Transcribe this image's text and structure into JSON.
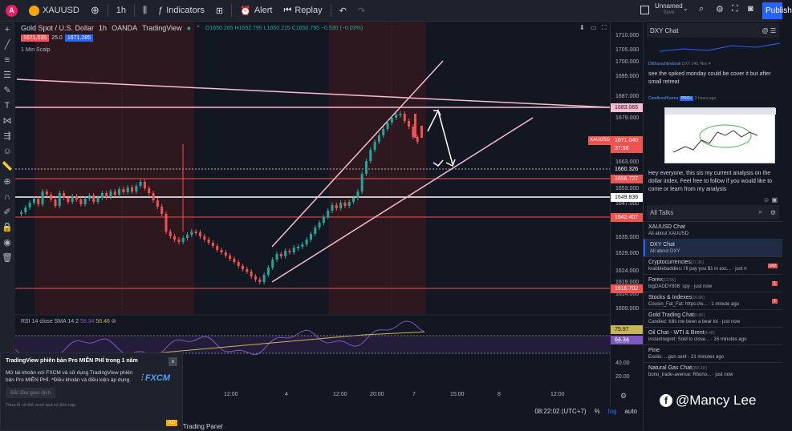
{
  "topbar": {
    "logo_badge": "A",
    "symbol": "XAUUSD",
    "interval": "1h",
    "indicators_label": "Indicators",
    "alert_label": "Alert",
    "replay_label": "Replay",
    "layout_name": "Unnamed",
    "layout_sub": "Save",
    "publish_label": "Publish"
  },
  "chart": {
    "title": "Gold Spot / U.S. Dollar",
    "interval": "1h",
    "exchange": "OANDA",
    "source": "TradingView",
    "ohlc": "O1650.265 H1652.795 L1650.215 C1650.795 −0.530 (−0.03%)",
    "sell_price": "1671.035",
    "spread": "25.0",
    "buy_price": "1671.285",
    "indicator_name": "1 Min Scalp",
    "rsi_header": "RSI 14 close SMA 14 2",
    "rsi_val1": "58.34",
    "rsi_val2": "56.46",
    "time_labels": [
      "12:00",
      "4",
      "12:00",
      "20:00",
      "7",
      "15:00",
      "8",
      "12:00"
    ]
  },
  "price_axis": {
    "labels": [
      "1710.000",
      "1705.000",
      "1700.000",
      "1695.000",
      "1687.000",
      "1679.000",
      "1663.000",
      "1653.000",
      "1647.000",
      "1641.000",
      "1635.000",
      "1629.000",
      "1624.000",
      "1619.000",
      "1614.000",
      "1609.000"
    ],
    "tags": [
      {
        "text": "1683.065",
        "color": "#f8bbd0",
        "textcolor": "#131722"
      },
      {
        "text": "1671.040",
        "color": "#ef5350",
        "textcolor": "#ffffff"
      },
      {
        "text": "37:58",
        "color": "#ef5350",
        "textcolor": "#ffffff"
      },
      {
        "text": "1660.326",
        "color": "#131722",
        "textcolor": "#ffffff"
      },
      {
        "text": "1656.727",
        "color": "#ef5350",
        "textcolor": "#ffffff"
      },
      {
        "text": "1649.836",
        "color": "#ffffff",
        "textcolor": "#131722"
      },
      {
        "text": "1642.407",
        "color": "#ef5350",
        "textcolor": "#ffffff"
      },
      {
        "text": "1616.702",
        "color": "#ef5350",
        "textcolor": "#ffffff"
      }
    ],
    "symbol_tag": "XAUUSD",
    "rsi_tags": [
      "75.97",
      "64.34"
    ],
    "rsi_labels": [
      "60.00",
      "40.00",
      "20.00"
    ]
  },
  "bottombar": {
    "time": "08:22:02 (UTC+7)",
    "percent": "%",
    "log": "log",
    "auto": "auto"
  },
  "chat": {
    "title": "DXY Chat",
    "messages": [
      {
        "user": "Dittharachtindarak",
        "meta": "DXY 240, Nov 4",
        "text": "see the spiked monday could be cover it but after small retreat"
      },
      {
        "user": "CandlesofKarma",
        "badge": "PRO+",
        "meta": "2 hours ago",
        "text": "Hey everyone, this sis my current analysis on the dollar index. Feel free to follow if you would like to come or learn from my analysis"
      }
    ]
  },
  "talks": {
    "title": "All Talks",
    "rooms": [
      {
        "title": "XAUUSD Chat",
        "sub": "All about XAUUSD",
        "selected": false
      },
      {
        "title": "DXY Chat",
        "sub": "All about DXY",
        "selected": true
      },
      {
        "title": "Cryptocurrencies",
        "count": "[37.3K]",
        "sub": "krabblebaddies: I'll pay you $1 in exc... · just n",
        "badge": "142"
      },
      {
        "title": "Forex",
        "count": "[12.5K]",
        "sub": "bigDADDY808: spy · just now",
        "badge": "1"
      },
      {
        "title": "Stocks & Indexes",
        "count": "[10.6K]",
        "sub": "Cousin_Fat_Fat: https://w... · 1 minute ago",
        "badge": "1"
      },
      {
        "title": "Gold Trading Chat",
        "count": "[6.9K]",
        "sub": "Candiez: kills me been a bear lol · just now",
        "badge": ""
      },
      {
        "title": "Oil Chat - WTI & Brent",
        "count": "[4.4K]",
        "sub": "instantregret: Sold to close... · 16 minutes ago",
        "badge": ""
      },
      {
        "title": "Pine",
        "count": "",
        "sub": "Exolio: ...gun sent · 21 minutes ago",
        "badge": ""
      },
      {
        "title": "Natural Gas Chat",
        "count": "[355.1K]",
        "sub": "bono_trade-avenue: Rbono... · just now",
        "badge": ""
      }
    ]
  },
  "popup": {
    "title": "TradingView phiên bản Pro MIỄN PHÍ trong 1 năm",
    "body": "Mở tài khoản với FXCM và sử dụng TradingView phiên bản Pro MIỄN PHÍ. *Điều khoản và điều kiện áp dụng.",
    "button": "Bắt đầu giao dịch",
    "brand": "FXCM",
    "footer": "Thua lỗ có thể vượt quá số tiền nạp.",
    "ad": "AD"
  },
  "trading_panel": "Trading Panel",
  "watermark": "@Mancy Lee",
  "colors": {
    "bg": "#131722",
    "up": "#26a69a",
    "down": "#ef5350",
    "session": "#3b1a22",
    "accent": "#2962ff"
  }
}
